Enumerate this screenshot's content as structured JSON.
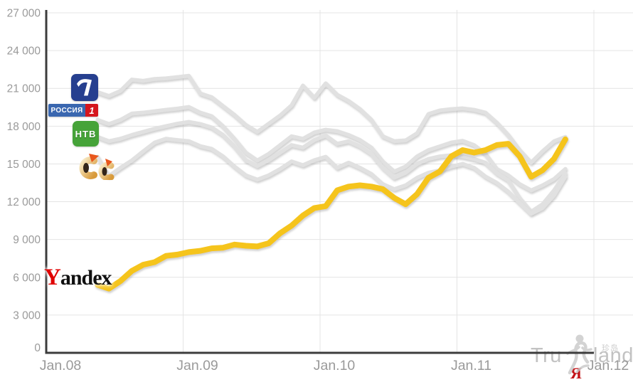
{
  "chart_data": {
    "type": "line",
    "title": "",
    "x_tick_labels": [
      "Jan.08",
      "Jan.09",
      "Jan.10",
      "Jan.11",
      "Jan.12"
    ],
    "x_tick_month_offsets": [
      0,
      12,
      24,
      36,
      48
    ],
    "y_tick_values": [
      0,
      3000,
      6000,
      9000,
      12000,
      15000,
      18000,
      21000,
      24000,
      27000
    ],
    "y_tick_labels": [
      "0",
      "3 000",
      "6 000",
      "9 000",
      "12 000",
      "15 000",
      "18 000",
      "21 000",
      "24 000",
      "27 000"
    ],
    "ylim": [
      0,
      27000
    ],
    "x_months_total": 48,
    "series_start_month_offset": 4.5,
    "grid": true,
    "colors": {
      "grid": "#e4e4e4",
      "axis": "#3c3c3c",
      "tick_text": "#9a9a9a"
    },
    "series": [
      {
        "name": "channel-one",
        "color": "#e1e1e1",
        "width": 5.5,
        "values": [
          20700,
          20400,
          20800,
          21700,
          21600,
          21750,
          21800,
          21900,
          22000,
          20600,
          20300,
          19600,
          18900,
          18100,
          17550,
          18200,
          18850,
          19650,
          21230,
          20260,
          21400,
          20500,
          20000,
          19360,
          18510,
          17200,
          16810,
          16870,
          17430,
          18960,
          19250,
          19350,
          19415,
          19300,
          19075,
          18280,
          17300,
          16100,
          15110,
          16000,
          16800,
          17150
        ]
      },
      {
        "name": "rossiya-1",
        "color": "#e1e1e1",
        "width": 5.5,
        "values": [
          18500,
          18170,
          18500,
          19000,
          19075,
          19190,
          19300,
          19400,
          19530,
          19075,
          18800,
          18000,
          17000,
          15900,
          15280,
          15800,
          16500,
          17200,
          17000,
          17500,
          17720,
          17600,
          17300,
          16900,
          16300,
          15200,
          14400,
          14800,
          15600,
          16100,
          16400,
          16700,
          16840,
          16500,
          15800,
          14600,
          14100,
          13400,
          12900,
          13300,
          13800,
          14600
        ]
      },
      {
        "name": "ntv",
        "color": "#e1e1e1",
        "width": 5.5,
        "values": [
          17150,
          16810,
          17000,
          17300,
          17550,
          17800,
          18000,
          18200,
          18340,
          18170,
          17900,
          17300,
          16400,
          15300,
          14830,
          15300,
          15900,
          16500,
          16300,
          16900,
          17260,
          16600,
          16800,
          16400,
          15800,
          14700,
          13900,
          14300,
          15000,
          15400,
          15600,
          15700,
          15600,
          15400,
          15100,
          14260,
          13700,
          12300,
          11210,
          11800,
          12900,
          14260
        ]
      },
      {
        "name": "sts",
        "color": "#e1e1e1",
        "width": 5.5,
        "values": [
          15570,
          14040,
          14700,
          15280,
          16000,
          16700,
          17000,
          16900,
          16810,
          16415,
          16200,
          15600,
          14800,
          14100,
          13760,
          14100,
          14600,
          15200,
          14900,
          15300,
          15570,
          14700,
          15100,
          14700,
          14200,
          13400,
          13000,
          13300,
          13900,
          14300,
          14500,
          14800,
          15000,
          14700,
          14000,
          13500,
          12800,
          11900,
          11040,
          11500,
          12500,
          13980
        ]
      },
      {
        "name": "yandex",
        "color": "#f5c41b",
        "width": 8,
        "values": [
          5400,
          5100,
          5700,
          6500,
          7000,
          7200,
          7700,
          7800,
          8000,
          8100,
          8300,
          8350,
          8600,
          8500,
          8450,
          8700,
          9500,
          10100,
          10900,
          11500,
          11650,
          12900,
          13200,
          13300,
          13200,
          13000,
          12300,
          11800,
          12600,
          13900,
          14400,
          15600,
          16100,
          15900,
          16100,
          16500,
          16600,
          15600,
          13980,
          14500,
          15400,
          16950
        ]
      }
    ]
  },
  "logos": {
    "channel_one": {
      "bg": "#263f8f"
    },
    "rossiya": {
      "text": "РОССИЯ",
      "one": "1",
      "bg": "#3a67b0",
      "one_bg": "#d5161d"
    },
    "ntv": {
      "text": "НТВ",
      "bg": "#46a339"
    },
    "yandex": {
      "first_letter": "Y",
      "rest": "andex",
      "first_color": "#e00000"
    }
  },
  "watermark": {
    "left": "Tru",
    "right": "land",
    "cn": "珍岛",
    "ya": "Я"
  }
}
